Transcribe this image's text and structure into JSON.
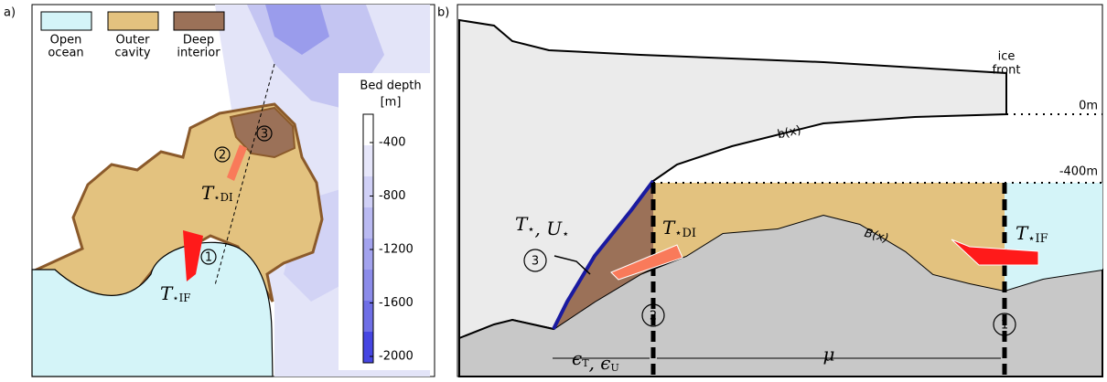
{
  "panel_a": {
    "label": "a)",
    "legend": [
      {
        "lines": [
          "Open",
          "ocean"
        ]
      },
      {
        "lines": [
          "Outer",
          "cavity"
        ]
      },
      {
        "lines": [
          "Deep",
          "interior"
        ]
      }
    ],
    "colorbar": {
      "title": [
        "Bed depth",
        "[m]"
      ],
      "ticks": [
        -400,
        -800,
        -1200,
        -1600,
        -2000
      ]
    },
    "markers": [
      "1",
      "2",
      "3"
    ],
    "t_di": [
      {
        "base": "T",
        "sub": "⋆DI"
      }
    ],
    "t_if": [
      {
        "base": "T",
        "sub": "⋆IF"
      }
    ]
  },
  "panel_b": {
    "label": "b)",
    "ice_front": [
      "ice",
      "front"
    ],
    "depth_labels": [
      "0m",
      "-400m"
    ],
    "b_label": "b(x)",
    "B_label": "B(x)",
    "t_u": [
      {
        "base": "T",
        "sub": "⋆"
      },
      {
        "base": ", U",
        "sub": "⋆"
      }
    ],
    "t_di": [
      {
        "base": "T",
        "sub": "⋆DI"
      }
    ],
    "t_if": [
      {
        "base": "T",
        "sub": "⋆IF"
      }
    ],
    "markers": [
      "1",
      "2",
      "3"
    ],
    "eps": [
      {
        "base": "ϵ",
        "sub": "T"
      },
      {
        "base": ", ϵ",
        "sub": "U"
      }
    ],
    "mu": "μ"
  }
}
